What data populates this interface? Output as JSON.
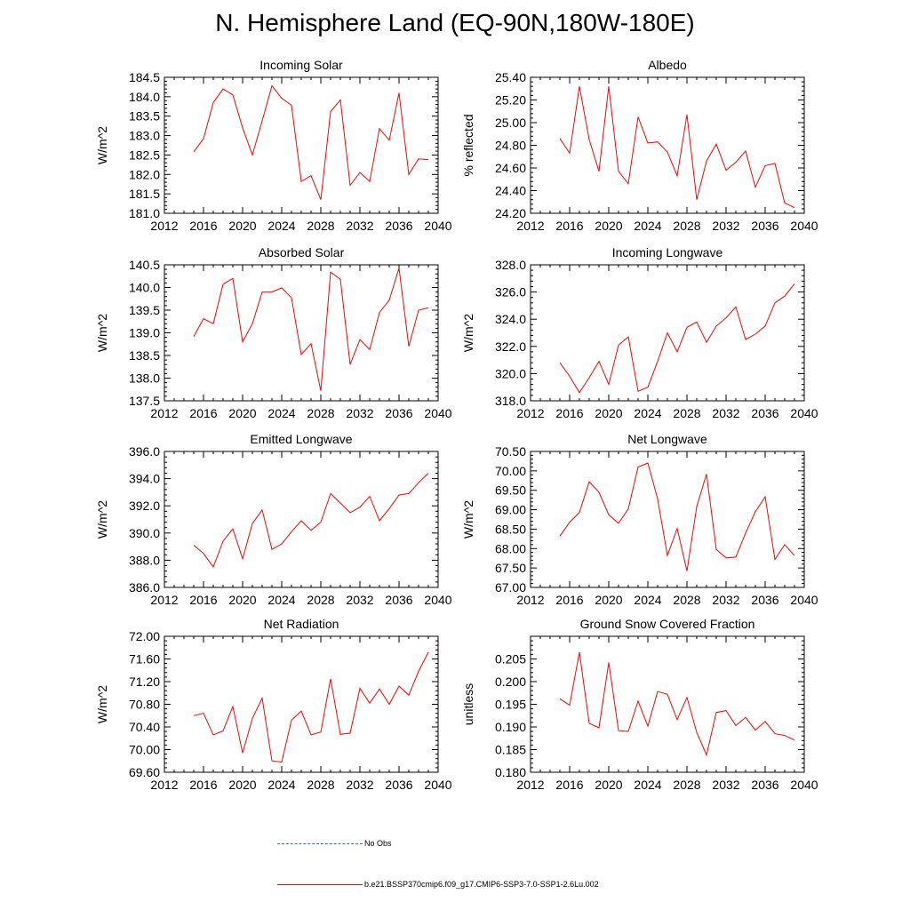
{
  "title": "N. Hemisphere Land (EQ-90N,180W-180E)",
  "legend": {
    "obs_label": "No Obs",
    "model_label": "b.e21.BSSP370cmip6.f09_g17.CMIP6-SSP3-7.0-SSP1-2.6Lu.002",
    "obs_color": "#2d6bff",
    "model_color": "#ff0000"
  },
  "chart_data": [
    {
      "type": "line",
      "title": "Incoming Solar",
      "ylabel": "W/m^2",
      "xlim": [
        2012,
        2040
      ],
      "xticks": [
        "2012",
        "2016",
        "2020",
        "2024",
        "2028",
        "2032",
        "2036",
        "2040"
      ],
      "ylim": [
        181.0,
        184.5
      ],
      "yticks": [
        "181.0",
        "181.5",
        "182.0",
        "182.5",
        "183.0",
        "183.5",
        "184.0",
        "184.5"
      ],
      "x": [
        2015,
        2016,
        2017,
        2018,
        2019,
        2020,
        2021,
        2022,
        2023,
        2024,
        2025,
        2026,
        2027,
        2028,
        2029,
        2030,
        2031,
        2032,
        2033,
        2034,
        2035,
        2036,
        2037,
        2038,
        2039
      ],
      "series": [
        {
          "values": [
            182.58,
            182.92,
            183.85,
            184.2,
            184.05,
            183.2,
            182.5,
            183.38,
            184.28,
            183.96,
            183.78,
            181.82,
            181.97,
            181.35,
            183.62,
            183.92,
            181.72,
            182.05,
            181.82,
            183.18,
            182.88,
            184.1,
            182.0,
            182.4,
            182.38
          ]
        }
      ]
    },
    {
      "type": "line",
      "title": "Albedo",
      "ylabel": "% reflected",
      "xlim": [
        2012,
        2040
      ],
      "xticks": [
        "2012",
        "2016",
        "2020",
        "2024",
        "2028",
        "2032",
        "2036",
        "2040"
      ],
      "ylim": [
        24.2,
        25.4
      ],
      "yticks": [
        "24.20",
        "24.40",
        "24.60",
        "24.80",
        "25.00",
        "25.20",
        "25.40"
      ],
      "x": [
        2015,
        2016,
        2017,
        2018,
        2019,
        2020,
        2021,
        2022,
        2023,
        2024,
        2025,
        2026,
        2027,
        2028,
        2029,
        2030,
        2031,
        2032,
        2033,
        2034,
        2035,
        2036,
        2037,
        2038,
        2039
      ],
      "series": [
        {
          "values": [
            24.86,
            24.73,
            25.32,
            24.85,
            24.57,
            25.32,
            24.57,
            24.46,
            25.05,
            24.82,
            24.83,
            24.74,
            24.53,
            25.07,
            24.32,
            24.66,
            24.81,
            24.58,
            24.65,
            24.75,
            24.43,
            24.62,
            24.64,
            24.29,
            24.25
          ]
        }
      ]
    },
    {
      "type": "line",
      "title": "Absorbed Solar",
      "ylabel": "W/m^2",
      "xlim": [
        2012,
        2040
      ],
      "xticks": [
        "2012",
        "2016",
        "2020",
        "2024",
        "2028",
        "2032",
        "2036",
        "2040"
      ],
      "ylim": [
        137.5,
        140.5
      ],
      "yticks": [
        "137.5",
        "138.0",
        "138.5",
        "139.0",
        "139.5",
        "140.0",
        "140.5"
      ],
      "x": [
        2015,
        2016,
        2017,
        2018,
        2019,
        2020,
        2021,
        2022,
        2023,
        2024,
        2025,
        2026,
        2027,
        2028,
        2029,
        2030,
        2031,
        2032,
        2033,
        2034,
        2035,
        2036,
        2037,
        2038,
        2039
      ],
      "series": [
        {
          "values": [
            138.92,
            139.31,
            139.2,
            140.07,
            140.2,
            138.8,
            139.2,
            139.9,
            139.9,
            139.99,
            139.77,
            138.52,
            138.76,
            137.72,
            140.34,
            140.18,
            138.3,
            138.85,
            138.63,
            139.45,
            139.72,
            140.43,
            138.7,
            139.5,
            139.55
          ]
        }
      ]
    },
    {
      "type": "line",
      "title": "Incoming Longwave",
      "ylabel": "W/m^2",
      "xlim": [
        2012,
        2040
      ],
      "xticks": [
        "2012",
        "2016",
        "2020",
        "2024",
        "2028",
        "2032",
        "2036",
        "2040"
      ],
      "ylim": [
        318.0,
        328.0
      ],
      "yticks": [
        "318.0",
        "320.0",
        "322.0",
        "324.0",
        "326.0",
        "328.0"
      ],
      "x": [
        2015,
        2016,
        2017,
        2018,
        2019,
        2020,
        2021,
        2022,
        2023,
        2024,
        2025,
        2026,
        2027,
        2028,
        2029,
        2030,
        2031,
        2032,
        2033,
        2034,
        2035,
        2036,
        2037,
        2038,
        2039
      ],
      "series": [
        {
          "values": [
            320.8,
            319.8,
            318.6,
            319.7,
            320.9,
            319.2,
            322.1,
            322.7,
            318.7,
            319.0,
            320.9,
            323.0,
            321.6,
            323.4,
            323.8,
            322.3,
            323.5,
            324.1,
            324.9,
            322.5,
            322.9,
            323.5,
            325.2,
            325.7,
            326.6
          ]
        }
      ]
    },
    {
      "type": "line",
      "title": "Emitted Longwave",
      "ylabel": "W/m^2",
      "xlim": [
        2012,
        2040
      ],
      "xticks": [
        "2012",
        "2016",
        "2020",
        "2024",
        "2028",
        "2032",
        "2036",
        "2040"
      ],
      "ylim": [
        386.0,
        396.0
      ],
      "yticks": [
        "386.0",
        "388.0",
        "390.0",
        "392.0",
        "394.0",
        "396.0"
      ],
      "x": [
        2015,
        2016,
        2017,
        2018,
        2019,
        2020,
        2021,
        2022,
        2023,
        2024,
        2025,
        2026,
        2027,
        2028,
        2029,
        2030,
        2031,
        2032,
        2033,
        2034,
        2035,
        2036,
        2037,
        2038,
        2039
      ],
      "series": [
        {
          "values": [
            389.1,
            388.5,
            387.5,
            389.4,
            390.3,
            388.1,
            390.7,
            391.7,
            388.8,
            389.2,
            390.1,
            390.9,
            390.2,
            390.8,
            392.9,
            392.2,
            391.5,
            391.9,
            392.7,
            390.9,
            391.8,
            392.8,
            392.9,
            393.7,
            394.4
          ]
        }
      ]
    },
    {
      "type": "line",
      "title": "Net Longwave",
      "ylabel": "W/m^2",
      "xlim": [
        2012,
        2040
      ],
      "xticks": [
        "2012",
        "2016",
        "2020",
        "2024",
        "2028",
        "2032",
        "2036",
        "2040"
      ],
      "ylim": [
        67.0,
        70.5
      ],
      "yticks": [
        "67.00",
        "67.50",
        "68.00",
        "68.50",
        "69.00",
        "69.50",
        "70.00",
        "70.50"
      ],
      "x": [
        2015,
        2016,
        2017,
        2018,
        2019,
        2020,
        2021,
        2022,
        2023,
        2024,
        2025,
        2026,
        2027,
        2028,
        2029,
        2030,
        2031,
        2032,
        2033,
        2034,
        2035,
        2036,
        2037,
        2038,
        2039
      ],
      "series": [
        {
          "values": [
            68.32,
            68.68,
            68.93,
            69.72,
            69.45,
            68.87,
            68.65,
            69.02,
            70.1,
            70.2,
            69.28,
            67.82,
            68.52,
            67.42,
            69.08,
            69.92,
            67.98,
            67.76,
            67.78,
            68.4,
            68.95,
            69.33,
            67.72,
            68.1,
            67.82
          ]
        }
      ]
    },
    {
      "type": "line",
      "title": "Net Radiation",
      "ylabel": "W/m^2",
      "xlim": [
        2012,
        2040
      ],
      "xticks": [
        "2012",
        "2016",
        "2020",
        "2024",
        "2028",
        "2032",
        "2036",
        "2040"
      ],
      "ylim": [
        69.6,
        72.0
      ],
      "yticks": [
        "69.60",
        "70.00",
        "70.40",
        "70.80",
        "71.20",
        "71.60",
        "72.00"
      ],
      "x": [
        2015,
        2016,
        2017,
        2018,
        2019,
        2020,
        2021,
        2022,
        2023,
        2024,
        2025,
        2026,
        2027,
        2028,
        2029,
        2030,
        2031,
        2032,
        2033,
        2034,
        2035,
        2036,
        2037,
        2038,
        2039
      ],
      "series": [
        {
          "values": [
            70.6,
            70.64,
            70.26,
            70.33,
            70.76,
            69.94,
            70.55,
            70.91,
            69.8,
            69.78,
            70.52,
            70.68,
            70.26,
            70.31,
            71.25,
            70.27,
            70.29,
            71.08,
            70.82,
            71.07,
            70.8,
            71.12,
            70.96,
            71.38,
            71.72
          ]
        }
      ]
    },
    {
      "type": "line",
      "title": "Ground Snow Covered Fraction",
      "ylabel": "unitless",
      "xlim": [
        2012,
        2040
      ],
      "xticks": [
        "2012",
        "2016",
        "2020",
        "2024",
        "2028",
        "2032",
        "2036",
        "2040"
      ],
      "ylim": [
        0.18,
        0.21
      ],
      "yticks": [
        "0.180",
        "0.185",
        "0.190",
        "0.195",
        "0.200",
        "0.205"
      ],
      "x": [
        2015,
        2016,
        2017,
        2018,
        2019,
        2020,
        2021,
        2022,
        2023,
        2024,
        2025,
        2026,
        2027,
        2028,
        2029,
        2030,
        2031,
        2032,
        2033,
        2034,
        2035,
        2036,
        2037,
        2038,
        2039
      ],
      "series": [
        {
          "values": [
            0.1962,
            0.1948,
            0.2065,
            0.1908,
            0.1898,
            0.2042,
            0.1892,
            0.189,
            0.1957,
            0.1902,
            0.1978,
            0.1972,
            0.1916,
            0.1965,
            0.1888,
            0.1838,
            0.1932,
            0.1936,
            0.1903,
            0.1921,
            0.1893,
            0.1912,
            0.1885,
            0.1881,
            0.1871
          ]
        }
      ]
    }
  ]
}
